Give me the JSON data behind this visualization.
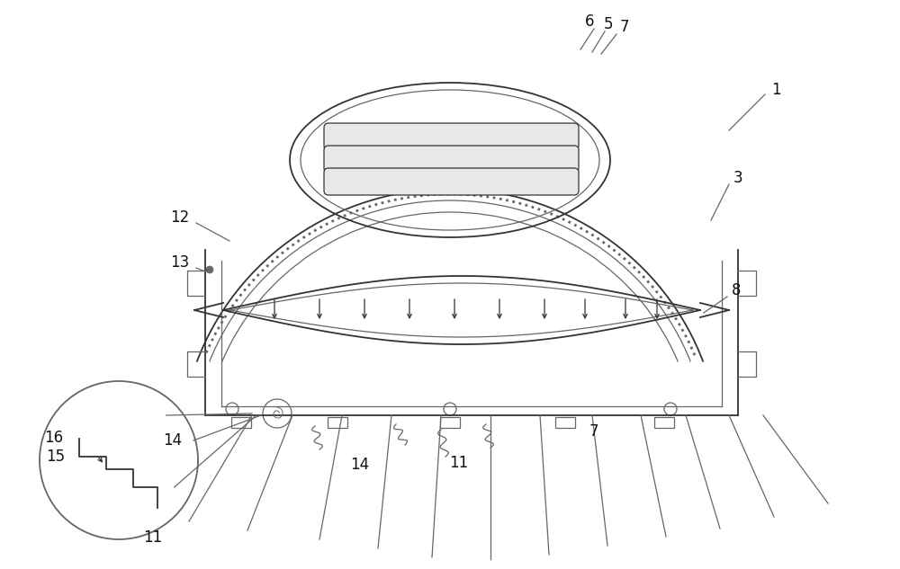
{
  "bg_color": "#ffffff",
  "line_color": "#666666",
  "line_color_dark": "#333333",
  "label_color": "#111111",
  "label_fontsize": 12,
  "fig_width": 10.0,
  "fig_height": 6.33,
  "dpi": 100
}
